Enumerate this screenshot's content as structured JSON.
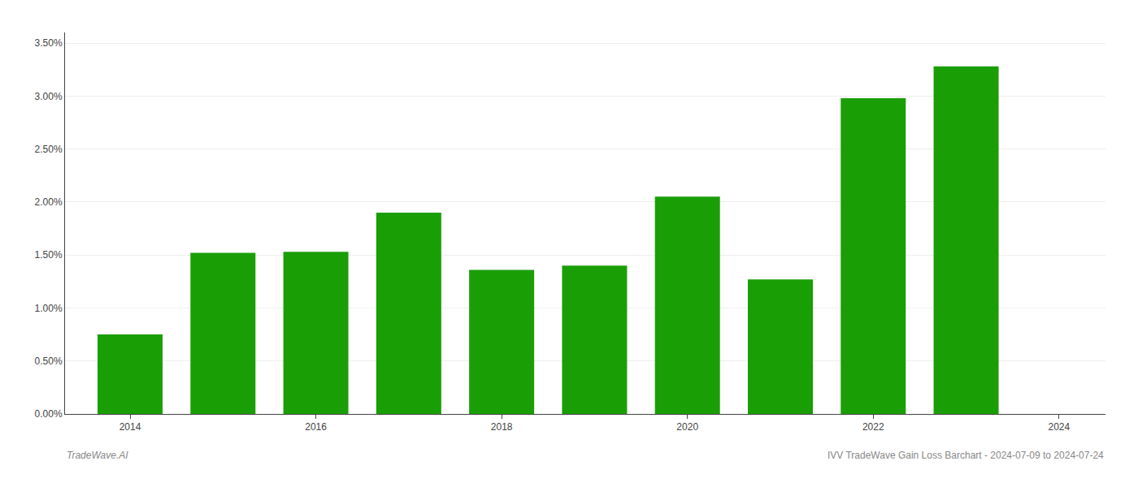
{
  "chart_data": {
    "type": "bar",
    "x": [
      2014,
      2015,
      2016,
      2017,
      2018,
      2019,
      2020,
      2021,
      2022,
      2023
    ],
    "values": [
      0.0075,
      0.0152,
      0.0153,
      0.019,
      0.0136,
      0.014,
      0.0205,
      0.0127,
      0.0298,
      0.0328
    ],
    "color": "#1a9e06",
    "xlim": [
      2013.3,
      2024.5
    ],
    "xticks": [
      2014,
      2016,
      2018,
      2020,
      2022,
      2024
    ],
    "ylim": [
      0,
      0.036
    ],
    "yticks": [
      {
        "value": 0,
        "label": "0.00%"
      },
      {
        "value": 0.005,
        "label": "0.50%"
      },
      {
        "value": 0.01,
        "label": "1.00%"
      },
      {
        "value": 0.015,
        "label": "1.50%"
      },
      {
        "value": 0.02,
        "label": "2.00%"
      },
      {
        "value": 0.025,
        "label": "2.50%"
      },
      {
        "value": 0.03,
        "label": "3.00%"
      },
      {
        "value": 0.035,
        "label": "3.50%"
      }
    ],
    "grid": true,
    "annotations": [
      "TradeWave.AI",
      "IVV TradeWave Gain Loss Barchart - 2024-07-09 to 2024-07-24"
    ]
  }
}
